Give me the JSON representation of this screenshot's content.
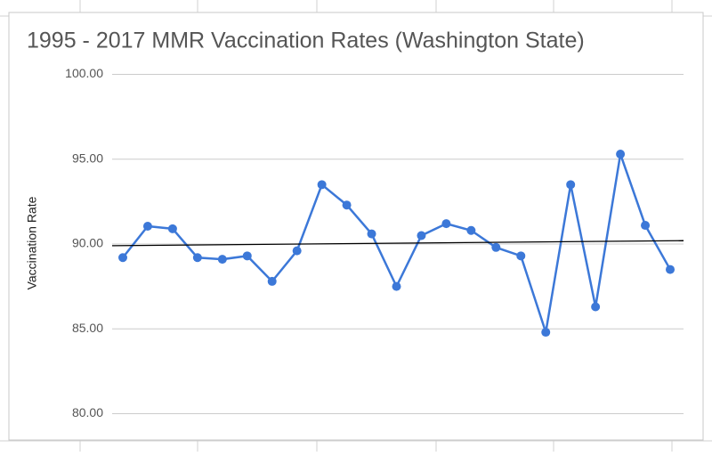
{
  "chart_data": {
    "type": "line",
    "title": "1995 - 2017 MMR Vaccination Rates (Washington State)",
    "y_label": "Vaccination Rate",
    "series": [
      {
        "color": "#3c78d8",
        "values": [
          89.2,
          91.05,
          90.9,
          89.2,
          89.1,
          89.3,
          87.8,
          89.6,
          93.5,
          92.3,
          90.6,
          87.5,
          90.5,
          91.2,
          90.8,
          89.8,
          89.3,
          84.8,
          93.5,
          86.3,
          95.3,
          91.1,
          88.5
        ]
      }
    ],
    "trendline": {
      "color": "#000000",
      "values": [
        89.9,
        90.2
      ]
    },
    "ylim": [
      79.5,
      100.5
    ],
    "yticks": [
      {
        "value": 80,
        "label": "80.00"
      },
      {
        "value": 85,
        "label": "85.00"
      },
      {
        "value": 90,
        "label": "90.00"
      },
      {
        "value": 95,
        "label": "95.00"
      },
      {
        "value": 100,
        "label": "100.00"
      }
    ],
    "grid": true
  }
}
